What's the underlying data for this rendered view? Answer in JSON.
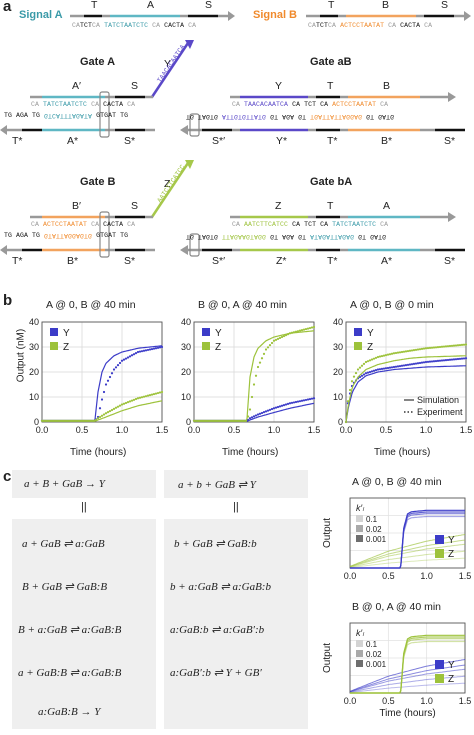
{
  "panel_labels": {
    "a": "a",
    "b": "b",
    "c": "c"
  },
  "panel_a": {
    "signal_a": {
      "title": "Signal A",
      "domains": [
        "T",
        "A",
        "S"
      ],
      "seq_left": "CA",
      "seq_t": "TCT",
      "seq_mid1": "CA",
      "seq_a": "TATCTAATCTC",
      "seq_mid2": "CA",
      "seq_s": "CACTA",
      "seq_right": "CA"
    },
    "signal_b": {
      "title": "Signal B",
      "domains": [
        "T",
        "B",
        "S"
      ],
      "seq_left": "CA",
      "seq_t": "TCT",
      "seq_mid1": "CA",
      "seq_b": "ACTCCTAATAT",
      "seq_mid2": "CA",
      "seq_s": "CACTA",
      "seq_right": "CA"
    },
    "gate_a": {
      "title": "Gate A",
      "top_domains": [
        "A′",
        "S"
      ],
      "bottom_domains": [
        "T*",
        "A*",
        "S*"
      ],
      "output": "Y",
      "output_seq": "TAACACAATCA",
      "top_seq": "TATCTAATCTC",
      "bottom_seq": "GTCATTTAGATA",
      "bottom_left": "TG AGA TG",
      "s_top": "CACTA",
      "s_bottom": "GTGAT TG"
    },
    "gate_b": {
      "title": "Gate B",
      "top_domains": [
        "B′",
        "S"
      ],
      "bottom_domains": [
        "T*",
        "B*",
        "S*"
      ],
      "output": "Z",
      "output_seq": "AATCTTCATCC",
      "top_seq": "ACTCCTAATAT",
      "bottom_seq": "GTATTAGGAGTG",
      "bottom_left": "TG AGA TG",
      "s_top": "CACTA",
      "s_bottom": "GTGAT TG"
    },
    "gate_ab": {
      "title": "Gate aB",
      "top_domains": [
        "Y",
        "T",
        "B"
      ],
      "bottom_domains": [
        "S*′",
        "Y*",
        "T*",
        "B*",
        "S*"
      ],
      "top_seq_y": "TAACACAATCA",
      "top_seq_b": "ACTCCTAATAT",
      "bottom_seq_y": "ATTGTGTTATG",
      "bottom_seq_b": "TGATTATTAGGAG",
      "mid_top": "CA TCT CA",
      "mid_bottom": "GT AGA GT",
      "left_bottom": "TG TAGTG",
      "right_bottom": "GT GATG"
    },
    "gate_ba": {
      "title": "Gate bA",
      "top_domains": [
        "Z",
        "T",
        "A"
      ],
      "bottom_domains": [
        "S*′",
        "Z*",
        "T*",
        "A*",
        "S*"
      ],
      "top_seq_z": "AATCTTCATCC",
      "top_seq_a": "TATCTAATCTC",
      "bottom_seq_z": "TTAGAAGTAGG",
      "bottom_seq_a": "ATAGATTAGAG",
      "mid_top": "CA TCT CA",
      "mid_bottom": "GT AGA GT",
      "left_bottom": "TG TAGTG",
      "right_bottom": "GT GATG"
    }
  },
  "panel_b": {
    "ylabel": "Output (nM)",
    "xlabel": "Time (hours)",
    "legend_sim": "Simulation",
    "legend_exp": "Experiment",
    "colors": {
      "Y": "#3c3cc8",
      "Z": "#9dc23b",
      "grid": "#d9d9d9"
    },
    "charts": [
      {
        "title": "A @ 0, B @ 40 min",
        "legend": [
          "Y",
          "Z"
        ]
      },
      {
        "title": "B @ 0, A @ 40 min",
        "legend": [
          "Y",
          "Z"
        ]
      },
      {
        "title": "A @ 0, B @ 0 min",
        "legend": [
          "Y",
          "Z"
        ]
      }
    ]
  },
  "chart_data": [
    {
      "type": "line",
      "title": "A @ 0, B @ 40 min",
      "xlabel": "Time (hours)",
      "ylabel": "Output (nM)",
      "xlim": [
        0,
        1.5
      ],
      "ylim": [
        0,
        40
      ],
      "x_ticks": [
        0.0,
        0.5,
        1.0,
        1.5
      ],
      "y_ticks": [
        0,
        10,
        20,
        30,
        40
      ],
      "series": [
        {
          "name": "Y",
          "kind": "simulation",
          "x": [
            0,
            0.66,
            0.7,
            0.75,
            0.8,
            0.9,
            1.0,
            1.2,
            1.5
          ],
          "y": [
            0.3,
            0.3,
            12,
            20,
            23.5,
            26.5,
            28,
            29.5,
            30.5
          ]
        },
        {
          "name": "Y",
          "kind": "experiment",
          "x": [
            0,
            0.66,
            0.7,
            0.75,
            0.8,
            0.9,
            1.0,
            1.2,
            1.5
          ],
          "y": [
            0.5,
            0.5,
            2,
            9,
            15,
            21,
            24.5,
            28,
            30
          ]
        },
        {
          "name": "Z",
          "kind": "simulation",
          "x": [
            0,
            0.66,
            0.7,
            0.8,
            1.0,
            1.2,
            1.5
          ],
          "y": [
            0.3,
            0.3,
            0.8,
            2,
            4.5,
            6.5,
            8.5
          ]
        },
        {
          "name": "Z",
          "kind": "experiment",
          "x": [
            0,
            0.66,
            0.7,
            0.8,
            1.0,
            1.2,
            1.5
          ],
          "y": [
            0.5,
            0.5,
            1.5,
            3.5,
            7,
            9.5,
            12
          ]
        }
      ]
    },
    {
      "type": "line",
      "title": "B @ 0, A @ 40 min",
      "xlabel": "Time (hours)",
      "ylabel": "Output (nM)",
      "xlim": [
        0,
        1.5
      ],
      "ylim": [
        0,
        40
      ],
      "x_ticks": [
        0.0,
        0.5,
        1.0,
        1.5
      ],
      "y_ticks": [
        0,
        10,
        20,
        30,
        40
      ],
      "series": [
        {
          "name": "Y",
          "kind": "simulation",
          "x": [
            0,
            0.66,
            0.7,
            0.8,
            1.0,
            1.2,
            1.5
          ],
          "y": [
            0.3,
            0.3,
            0.8,
            2,
            3.8,
            5.5,
            7.5
          ]
        },
        {
          "name": "Y",
          "kind": "experiment",
          "x": [
            0,
            0.66,
            0.7,
            0.8,
            1.0,
            1.2,
            1.5
          ],
          "y": [
            0.5,
            0.5,
            1.5,
            3,
            5.5,
            7.5,
            9.5
          ]
        },
        {
          "name": "Z",
          "kind": "simulation",
          "x": [
            0,
            0.66,
            0.7,
            0.75,
            0.8,
            0.9,
            1.0,
            1.2,
            1.5
          ],
          "y": [
            0.3,
            0.3,
            18,
            26,
            29.5,
            32.5,
            34,
            35.5,
            36.5
          ]
        },
        {
          "name": "Z",
          "kind": "experiment",
          "x": [
            0,
            0.66,
            0.7,
            0.75,
            0.8,
            0.9,
            1.0,
            1.2,
            1.5
          ],
          "y": [
            0.5,
            0.5,
            5,
            15,
            22,
            29,
            32.5,
            35.5,
            38
          ]
        }
      ]
    },
    {
      "type": "line",
      "title": "A @ 0, B @ 0 min",
      "xlabel": "Time (hours)",
      "ylabel": "Output (nM)",
      "xlim": [
        0,
        1.5
      ],
      "ylim": [
        0,
        40
      ],
      "x_ticks": [
        0.0,
        0.5,
        1.0,
        1.5
      ],
      "y_ticks": [
        0,
        10,
        20,
        30,
        40
      ],
      "series": [
        {
          "name": "Y",
          "kind": "simulation",
          "x": [
            0,
            0.03,
            0.08,
            0.15,
            0.25,
            0.4,
            0.6,
            0.8,
            1.0,
            1.5
          ],
          "y": [
            0,
            6,
            12,
            16,
            18.5,
            20,
            21,
            21.5,
            22,
            22.5
          ]
        },
        {
          "name": "Y",
          "kind": "experiment",
          "x": [
            0,
            0.03,
            0.08,
            0.15,
            0.25,
            0.4,
            0.6,
            0.8,
            1.0,
            1.5
          ],
          "y": [
            0,
            9,
            15,
            17.5,
            19.5,
            21,
            22,
            23,
            24,
            25.5
          ]
        },
        {
          "name": "Z",
          "kind": "simulation",
          "x": [
            0,
            0.03,
            0.08,
            0.15,
            0.25,
            0.4,
            0.6,
            0.8,
            1.0,
            1.5
          ],
          "y": [
            0,
            7,
            14,
            18,
            21,
            23,
            24.5,
            25.5,
            26,
            26.5
          ]
        },
        {
          "name": "Z",
          "kind": "experiment",
          "x": [
            0,
            0.03,
            0.08,
            0.15,
            0.25,
            0.4,
            0.6,
            0.8,
            1.0,
            1.5
          ],
          "y": [
            0,
            10,
            17,
            21,
            24,
            26,
            27.5,
            28.5,
            29.5,
            31
          ]
        }
      ]
    },
    {
      "type": "line",
      "title": "A @ 0, B @ 40 min",
      "xlabel": "Time (hours)",
      "ylabel": "Output",
      "xlim": [
        0,
        1.5
      ],
      "ylim": [
        0,
        1
      ],
      "x_ticks": [
        0.0,
        0.5,
        1.0,
        1.5
      ],
      "legend_title": "k′ₗ",
      "legend_values": [
        "0.1",
        "0.02",
        "0.001"
      ],
      "series": [
        {
          "name": "Y",
          "x": [
            0,
            0.66,
            0.7,
            0.75,
            0.8,
            1.0,
            1.5
          ],
          "y": [
            0,
            0,
            0.55,
            0.75,
            0.78,
            0.8,
            0.8
          ]
        },
        {
          "name": "Z",
          "x": [
            0,
            0.5,
            1.0,
            1.5
          ],
          "y": [
            0.02,
            0.2,
            0.32,
            0.4
          ]
        }
      ]
    },
    {
      "type": "line",
      "title": "B @ 0, A @ 40 min",
      "xlabel": "Time (hours)",
      "ylabel": "Output",
      "xlim": [
        0,
        1.5
      ],
      "ylim": [
        0,
        1
      ],
      "x_ticks": [
        0.0,
        0.5,
        1.0,
        1.5
      ],
      "legend_title": "k′ₗ",
      "legend_values": [
        "0.1",
        "0.02",
        "0.001"
      ],
      "series": [
        {
          "name": "Z",
          "x": [
            0,
            0.66,
            0.7,
            0.75,
            0.8,
            1.0,
            1.5
          ],
          "y": [
            0,
            0,
            0.55,
            0.75,
            0.78,
            0.8,
            0.8
          ]
        },
        {
          "name": "Y",
          "x": [
            0,
            0.5,
            1.0,
            1.5
          ],
          "y": [
            0.02,
            0.2,
            0.32,
            0.4
          ]
        }
      ]
    }
  ],
  "panel_c": {
    "left_header": "a + B + GaB → Y",
    "right_header": "a + b + GaB ⇌ Y",
    "left_reactions": [
      "a + GaB ⇌ a:GaB",
      "B + GaB ⇌ GaB:B",
      "B + a:GaB ⇌ a:GaB:B",
      "a + GaB:B ⇌ a:GaB:B",
      "a:GaB:B → Y"
    ],
    "right_reactions": [
      "b + GaB ⇌ GaB:b",
      "b + a:GaB ⇌ a:GaB:b",
      "a:GaB:b ⇌ a:GaB′:b",
      "a:GaB′:b ⇌ Y + GB′"
    ],
    "legend_greys": [
      "#d3d3d3",
      "#a9a9a9",
      "#6e6e6e"
    ]
  }
}
